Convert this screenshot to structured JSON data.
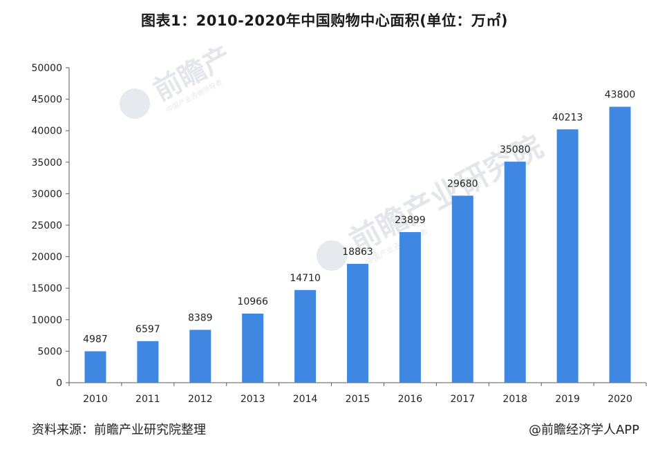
{
  "header": {
    "title": "图表1：2010-2020年中国购物中心面积(单位：万㎡)"
  },
  "footer": {
    "source": "资料来源：前瞻产业研究院整理",
    "credit": "@前瞻经济学人APP"
  },
  "watermark": {
    "brand": "前瞻产业研究院",
    "brand_short": "前瞻产",
    "tagline": "中国产业咨询领导者"
  },
  "colors": {
    "bar": "#3f87e0",
    "axis": "#595959"
  },
  "chart_data": {
    "type": "bar",
    "title": "图表1：2010-2020年中国购物中心面积(单位：万㎡)",
    "xlabel": "",
    "ylabel": "",
    "categories": [
      "2010",
      "2011",
      "2012",
      "2013",
      "2014",
      "2015",
      "2016",
      "2017",
      "2018",
      "2019",
      "2020"
    ],
    "values": [
      4987,
      6597,
      8389,
      10966,
      14710,
      18863,
      23899,
      29680,
      35080,
      40213,
      43800
    ],
    "ylim": [
      0,
      50000
    ],
    "yticks": [
      0,
      5000,
      10000,
      15000,
      20000,
      25000,
      30000,
      35000,
      40000,
      45000,
      50000
    ],
    "data_labels": true,
    "grid": false,
    "legend": "none"
  }
}
